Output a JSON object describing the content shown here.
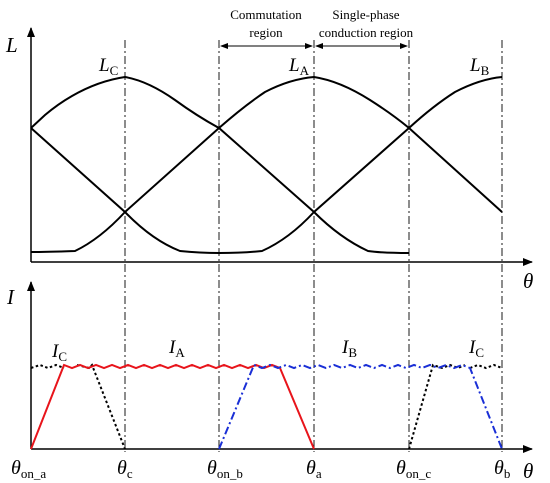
{
  "upper_plot": {
    "y_axis_label": "L",
    "x_axis_label": "θ",
    "curves": [
      {
        "name": "L",
        "sub": "C"
      },
      {
        "name": "L",
        "sub": "A"
      },
      {
        "name": "L",
        "sub": "B"
      }
    ],
    "region_labels": {
      "commutation_line1": "Commutation",
      "commutation_line2": "region",
      "single_line1": "Single-phase",
      "single_line2": "conduction region"
    }
  },
  "lower_plot": {
    "y_axis_label": "I",
    "x_axis_label": "θ",
    "currents": [
      {
        "name": "I",
        "sub": "C",
        "color": "#000000",
        "style": "dotted"
      },
      {
        "name": "I",
        "sub": "A",
        "color": "#e8141b",
        "style": "solid"
      },
      {
        "name": "I",
        "sub": "B",
        "color": "#1a2fd6",
        "style": "dashdot"
      },
      {
        "name": "I",
        "sub": "C",
        "color": "#000000",
        "style": "dotted"
      }
    ],
    "angle_labels": [
      {
        "main": "θ",
        "sub": "on_a"
      },
      {
        "main": "θ",
        "sub": "c"
      },
      {
        "main": "θ",
        "sub": "on_b"
      },
      {
        "main": "θ",
        "sub": "a"
      },
      {
        "main": "θ",
        "sub": "on_c"
      },
      {
        "main": "θ",
        "sub": "b"
      }
    ]
  }
}
